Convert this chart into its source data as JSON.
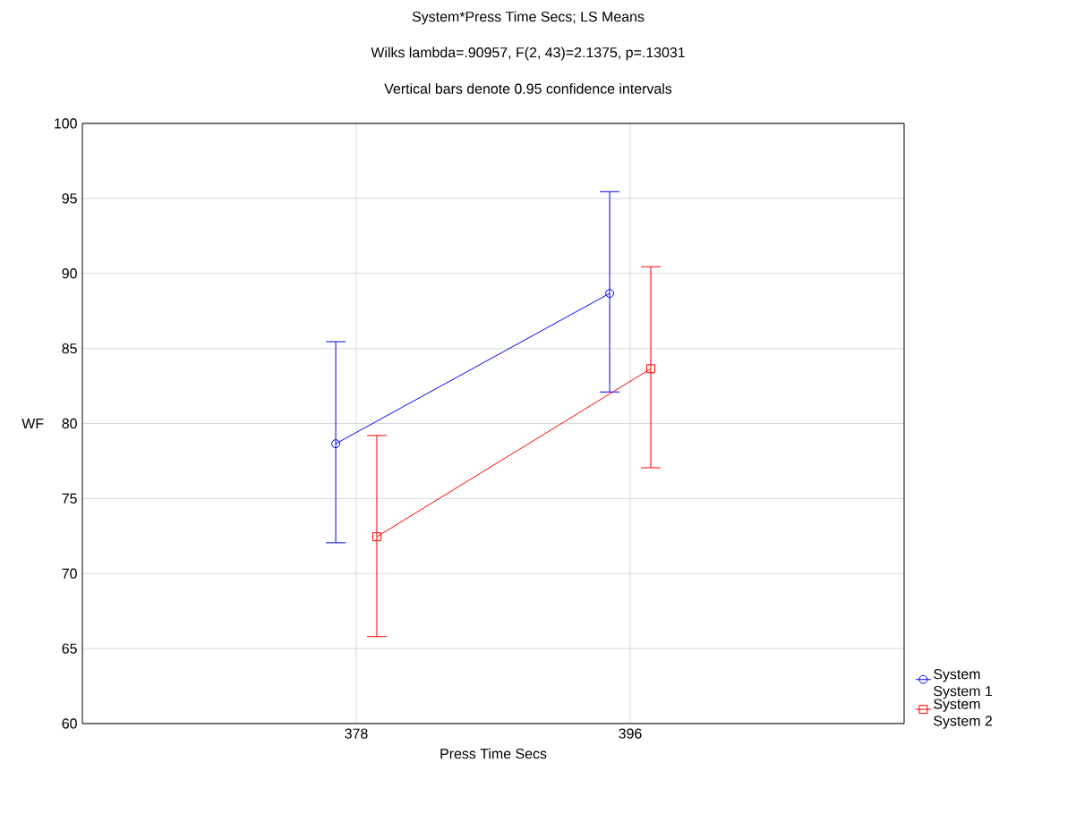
{
  "chart_data": {
    "type": "line",
    "title": "System*Press Time Secs; LS Means",
    "subtitle": "Wilks lambda=.90957, F(2, 43)=2.1375, p=.13031",
    "annotations": [
      "Vertical bars denote 0.95 confidence intervals"
    ],
    "xlabel": "Press Time Secs",
    "ylabel": "WF",
    "categories": [
      "378",
      "396"
    ],
    "series": [
      {
        "name": "System System 1",
        "color": "#0000ff",
        "marker": "circle",
        "values": [
          78.65,
          88.67
        ],
        "errors": [
          [
            72.05,
            85.45
          ],
          [
            82.1,
            95.45
          ]
        ]
      },
      {
        "name": "System System 2",
        "color": "#ff0000",
        "marker": "square",
        "values": [
          72.45,
          83.65
        ],
        "errors": [
          [
            65.8,
            79.2
          ],
          [
            77.05,
            90.45
          ]
        ]
      }
    ],
    "ylim": [
      60,
      100
    ],
    "yticks": [
      60,
      65,
      70,
      75,
      80,
      85,
      90,
      95,
      100
    ],
    "grid": true,
    "legend": "bottom right",
    "line_style": "solid"
  }
}
